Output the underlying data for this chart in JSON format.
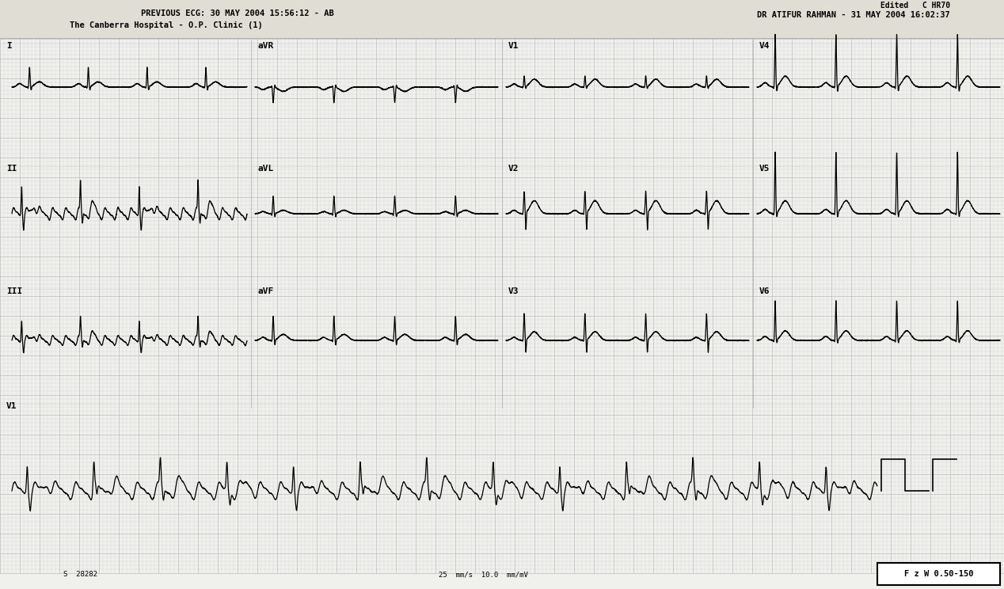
{
  "bg_color": "#e8e8e8",
  "grid_dot_color": "#b0b0b0",
  "grid_major_color": "#aaaaaa",
  "line_color": "#000000",
  "fig_width": 12.68,
  "fig_height": 7.44,
  "header_left_line1": "PREVIOUS ECG: 30 MAY 2004 15:56:12 - AB",
  "header_left_line2": "The Canberra Hospital - O.P. Clinic (1)",
  "header_right_line1": "Edited   C HR70",
  "header_right_line2": "DR ATIFUR RAHMAN - 31 MAY 2004 16:02:37",
  "footer_text": "F z W 0.50-150",
  "speed_text": "25  mm/s  10.0  mm/mV",
  "footer_bottom_text": "S  28282"
}
